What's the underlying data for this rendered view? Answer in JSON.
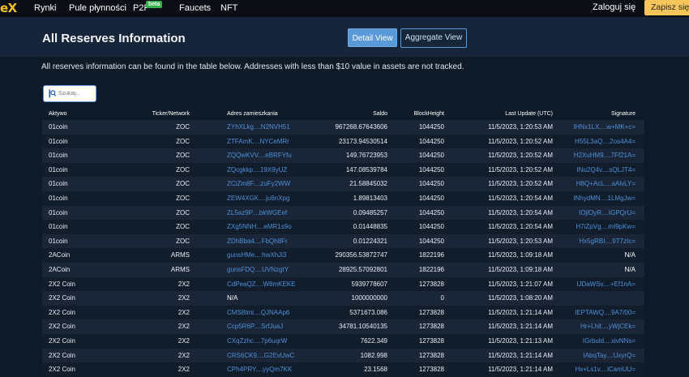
{
  "nav": {
    "brand": "eX",
    "links": [
      "Rynki",
      "Pule płynności",
      "P2P",
      "Faucets",
      "NFT"
    ],
    "beta_badge": "beta",
    "login": "Zaloguj się",
    "signup": "Zapisz się"
  },
  "header": {
    "title": "All Reserves Information",
    "detail_view": "Detail View",
    "aggregate_view": "Aggregate View"
  },
  "info_text": "All reserves information can be found in the table below. Addresses with less than $10 value in assets are not tracked.",
  "search": {
    "placeholder": "Szukaj..."
  },
  "table": {
    "headers": [
      "Aktywo",
      "Ticker/Network",
      "Adres zamieszkania",
      "Saldo",
      "BlockHeight",
      "Last Update (UTC)",
      "Signature"
    ],
    "rows": [
      [
        "01coin",
        "ZOC",
        "ZYhXLkg....N2NVH51",
        "967268.67643606",
        "1044250",
        "11/5/2023, 1:20:53 AM",
        "IHNx1LX....w+MK+c="
      ],
      [
        "01coin",
        "ZOC",
        "ZTFAmK....NYCeMRr",
        "23173.94530514",
        "1044250",
        "11/5/2023, 1:20:52 AM",
        "H55L3aQ....2os4A4="
      ],
      [
        "01coin",
        "ZOC",
        "ZQQwKVV....eBRFYfu",
        "149.76723953",
        "1044250",
        "11/5/2023, 1:20:52 AM",
        "H2XuHM9....7Ff21A="
      ],
      [
        "01coin",
        "ZOC",
        "ZQcgkkp....19X9yUZ",
        "147.08539784",
        "1044250",
        "11/5/2023, 1:20:52 AM",
        "INu2Q4v....sQLJT4="
      ],
      [
        "01coin",
        "ZOC",
        "ZCiZm8F....zuFy2WW",
        "21.58845032",
        "1044250",
        "11/5/2023, 1:20:52 AM",
        "H8Q+AcL....aAlvLY="
      ],
      [
        "01coin",
        "ZOC",
        "ZEW4XGK....ju6nXpg",
        "1.89813403",
        "1044250",
        "11/5/2023, 1:20:54 AM",
        "INhydMN....1LMgJw="
      ],
      [
        "01coin",
        "ZOC",
        "ZL5az9P....bkWGEef",
        "0.09485257",
        "1044250",
        "11/5/2023, 1:20:54 AM",
        "IOjlOyR....IGPQrU="
      ],
      [
        "01coin",
        "ZOC",
        "ZXg5NNH....eMR1s9o",
        "0.01448835",
        "1044250",
        "11/5/2023, 1:20:54 AM",
        "H7iZpVg....mI9pKw="
      ],
      [
        "01coin",
        "ZOC",
        "ZDhBba4....FbQh8Fr",
        "0.01224321",
        "1044250",
        "11/5/2023, 1:20:53 AM",
        "Hx5gRBI....9T7zIc="
      ],
      [
        "2ACoin",
        "ARMS",
        "gunsHMe....hwXhJi3",
        "290356.53872747",
        "1822196",
        "11/5/2023, 1:09:18 AM",
        "N/A"
      ],
      [
        "2ACoin",
        "ARMS",
        "gunsFDQ....UVNzgtY",
        "28925.57092801",
        "1822196",
        "11/5/2023, 1:09:18 AM",
        "N/A"
      ],
      [
        "2X2 Coin",
        "2X2",
        "CdPeaQZ....W8mKEKE",
        "5939778607",
        "1273828",
        "11/5/2023, 1:21:07 AM",
        "IJDaWSv....+Ef1nA="
      ],
      [
        "2X2 Coin",
        "2X2",
        "N/A",
        "1000000000",
        "0",
        "11/5/2023, 1:08:20 AM",
        ""
      ],
      [
        "2X2 Coin",
        "2X2",
        "CMS8tmi....QJNAAp6",
        "5371673.086",
        "1273828",
        "11/5/2023, 1:21:14 AM",
        "IEPTAWQ....9A7/00="
      ],
      [
        "2X2 Coin",
        "2X2",
        "Ccp5R6P....SrfJuaJ",
        "34781.10540135",
        "1273828",
        "11/5/2023, 1:21:14 AM",
        "Hr+Lhlt....yWjCEk="
      ],
      [
        "2X2 Coin",
        "2X2",
        "CXqZzhc....7p6uqrW",
        "7622.349",
        "1273828",
        "11/5/2023, 1:21:13 AM",
        "IGrbuld....xivNNs="
      ],
      [
        "2X2 Coin",
        "2X2",
        "CRS6CK9....G2EvUwC",
        "1082.998",
        "1273828",
        "11/5/2023, 1:21:14 AM",
        "IAbqTay....UxyrQ="
      ],
      [
        "2X2 Coin",
        "2X2",
        "CPh4PRY....yyQm7KK",
        "23.1568",
        "1273828",
        "11/5/2023, 1:21:14 AM",
        "Hx+Ls1v....lCamUU="
      ]
    ]
  },
  "colors": {
    "accent": "#5b9ad8",
    "link": "#4f8fd6",
    "brand": "#f1c21b",
    "signup_bg": "#f5c45a",
    "beta_bg": "#35b34a"
  },
  "icons": {
    "search": "search-icon"
  }
}
